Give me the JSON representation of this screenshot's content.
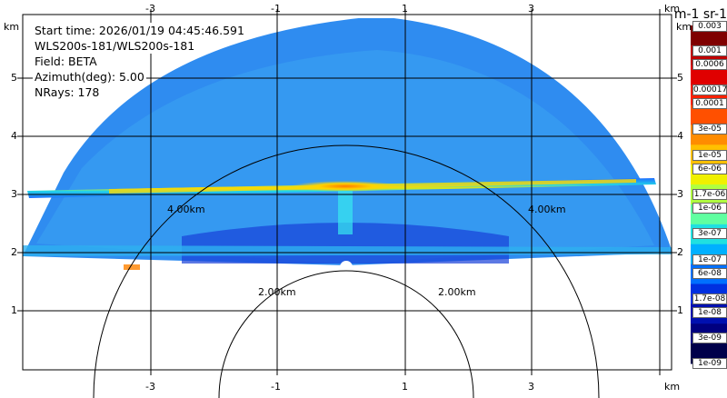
{
  "info": {
    "start_time": "Start time: 2026/01/19 04:45:46.591",
    "instrument": "WLS200s-181/WLS200s-181",
    "field": "Field: BETA",
    "azimuth": "Azimuth(deg): 5.00",
    "nrays": "NRays: 178"
  },
  "colorbar": {
    "units_title": "m-1 sr-1",
    "labels": [
      "0.003",
      "0.001",
      "0.0006",
      "0.00017",
      "0.0001",
      "3e-05",
      "1e-05",
      "6e-06",
      "1.7e-06",
      "1e-06",
      "3e-07",
      "1e-07",
      "6e-08",
      "1.7e-08",
      "1e-08",
      "3e-09",
      "1e-09"
    ],
    "colors": [
      "#7f0000",
      "#c00000",
      "#e00000",
      "#ff2000",
      "#ff5000",
      "#ff8c00",
      "#ffc000",
      "#f0f000",
      "#b0ff40",
      "#60ffa0",
      "#20e0e0",
      "#00b0ff",
      "#0070ff",
      "#0030e0",
      "#0010b0",
      "#000080",
      "#00004a"
    ]
  },
  "axes": {
    "unit": "km",
    "x_ticks": [
      "-3",
      "-1",
      "1",
      "3"
    ],
    "y_ticks": [
      "5",
      "4",
      "3",
      "2",
      "1"
    ],
    "range_rings": [
      "2.00km",
      "4.00km"
    ]
  }
}
